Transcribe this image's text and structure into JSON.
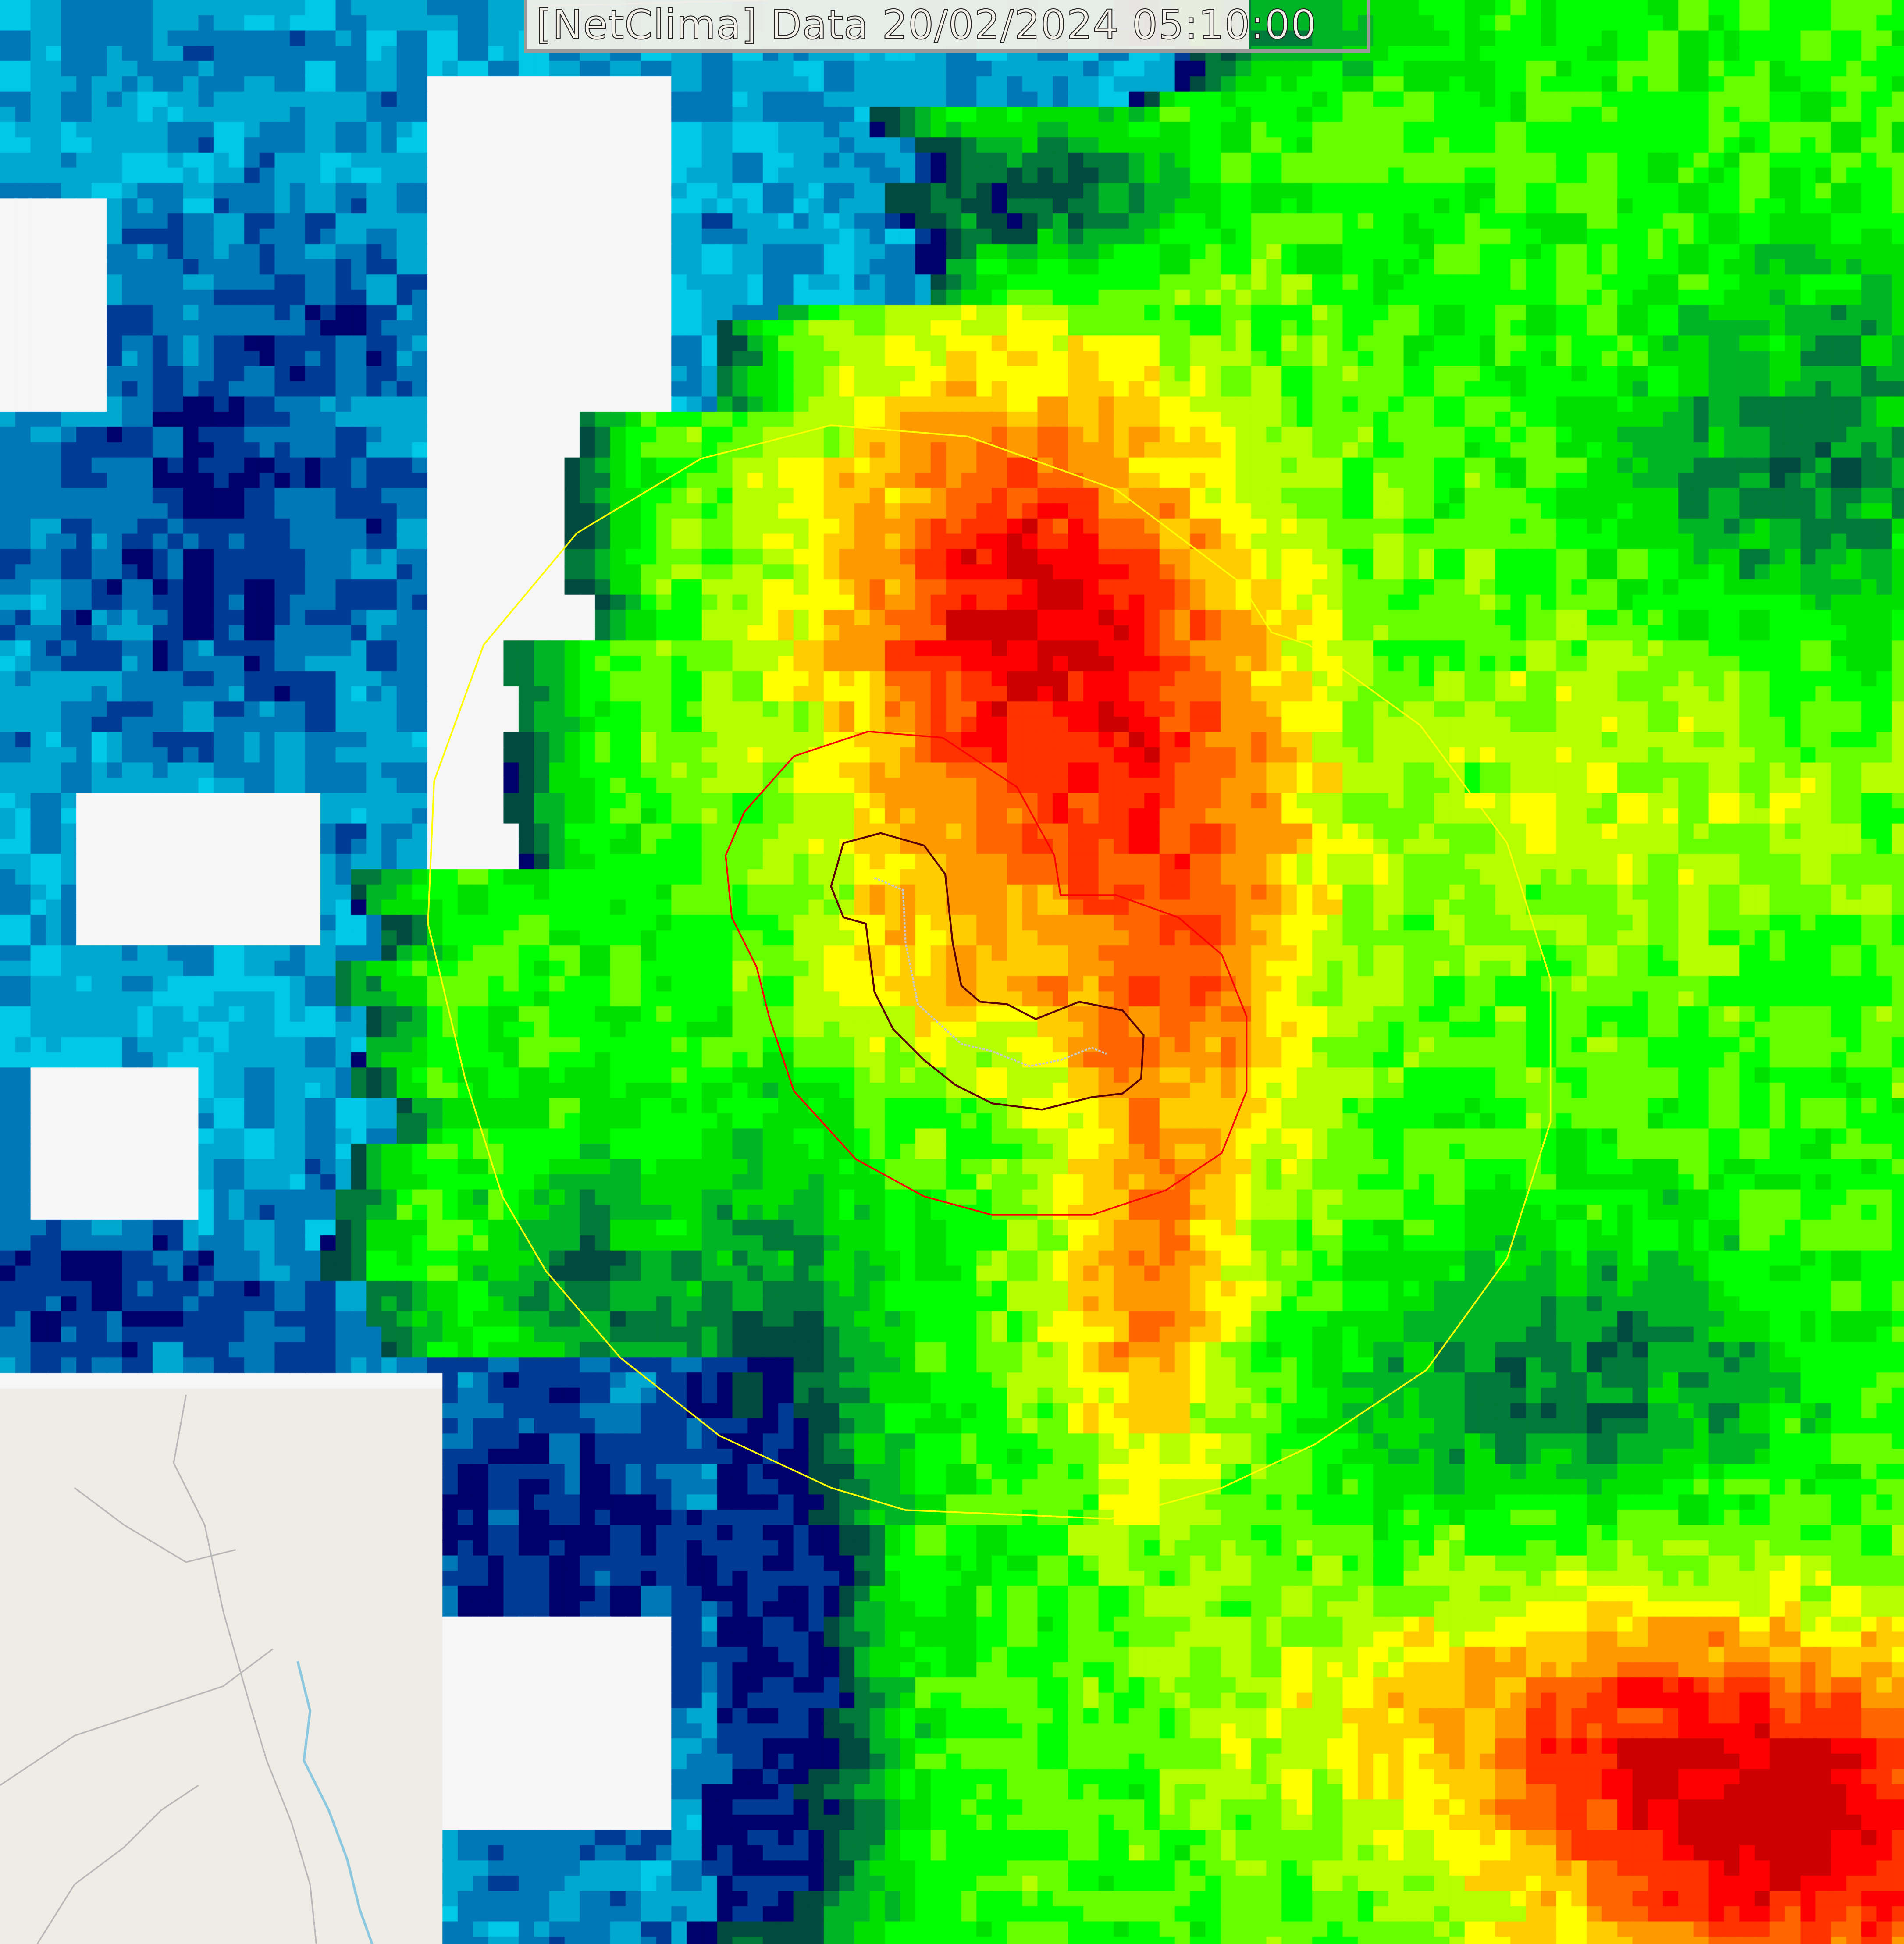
{
  "header": {
    "title": "[NetClima] Data 20/02/2024 05:10:00"
  },
  "map": {
    "layer": "radar-reflectivity",
    "colors": {
      "scale": [
        "#00ffff",
        "#00c8e6",
        "#00a8d0",
        "#0078b8",
        "#003c96",
        "#00006a",
        "#004a40",
        "#007a38",
        "#00b428",
        "#00e000",
        "#00ff00",
        "#66ff00",
        "#b4ff00",
        "#ffff00",
        "#ffcc00",
        "#ff9900",
        "#ff6600",
        "#ff3300",
        "#ff0000",
        "#cc0000"
      ],
      "basemap_land": "#efece6",
      "basemap_lines": "#b8b8b8",
      "rivers": "#8cc8e0",
      "contour_outer": "#ffff00",
      "contour_middle": "#ff0000",
      "contour_inner": "#5a0000",
      "track": "#c8c8c8"
    }
  }
}
